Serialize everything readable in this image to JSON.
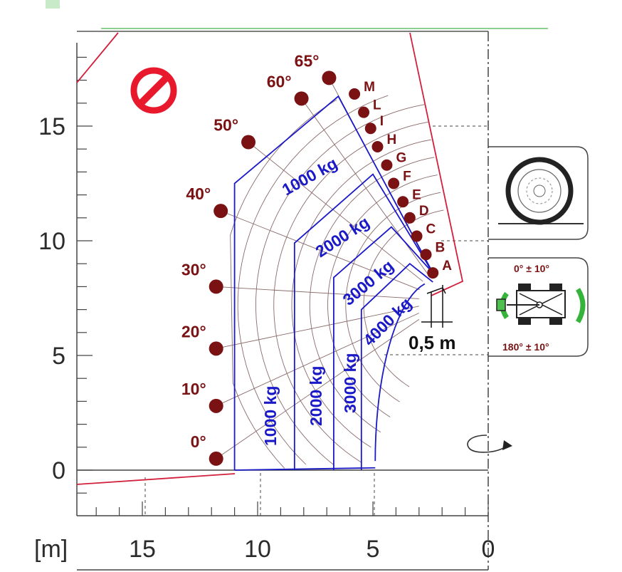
{
  "x_axis": {
    "unit_label": "[m]",
    "ticks": [
      {
        "value": 15,
        "label": "15"
      },
      {
        "value": 10,
        "label": "10"
      },
      {
        "value": 5,
        "label": "5"
      },
      {
        "value": 0,
        "label": "0"
      }
    ]
  },
  "y_axis": {
    "ticks": [
      {
        "value": 15,
        "label": "15"
      },
      {
        "value": 10,
        "label": "10"
      },
      {
        "value": 5,
        "label": "5"
      },
      {
        "value": 0,
        "label": "0"
      }
    ]
  },
  "boom_angles": [
    {
      "label": "0°",
      "x": 11.8,
      "y": 0.5
    },
    {
      "label": "10°",
      "x": 11.8,
      "y": 2.8
    },
    {
      "label": "20°",
      "x": 11.8,
      "y": 5.3
    },
    {
      "label": "30°",
      "x": 11.8,
      "y": 8.0
    },
    {
      "label": "40°",
      "x": 11.6,
      "y": 11.3
    },
    {
      "label": "50°",
      "x": 10.4,
      "y": 14.3
    },
    {
      "label": "60°",
      "x": 8.1,
      "y": 16.2
    },
    {
      "label": "65°",
      "x": 6.9,
      "y": 17.1
    }
  ],
  "extension_positions": [
    {
      "label": "A",
      "x": 2.4,
      "y": 8.6
    },
    {
      "label": "B",
      "x": 2.7,
      "y": 9.4
    },
    {
      "label": "C",
      "x": 3.1,
      "y": 10.2
    },
    {
      "label": "D",
      "x": 3.4,
      "y": 11.0
    },
    {
      "label": "E",
      "x": 3.7,
      "y": 11.7
    },
    {
      "label": "F",
      "x": 4.1,
      "y": 12.5
    },
    {
      "label": "G",
      "x": 4.4,
      "y": 13.3
    },
    {
      "label": "H",
      "x": 4.8,
      "y": 14.1
    },
    {
      "label": "I",
      "x": 5.1,
      "y": 14.9
    },
    {
      "label": "L",
      "x": 5.4,
      "y": 15.6
    },
    {
      "label": "M",
      "x": 5.8,
      "y": 16.4
    }
  ],
  "load_zones": [
    {
      "label": "1000 kg",
      "diagonal_label": "1000 kg",
      "reach_x": 11.0
    },
    {
      "label": "2000 kg",
      "diagonal_label": "2000 kg",
      "reach_x": 8.4
    },
    {
      "label": "3000 kg",
      "diagonal_label": "3000 kg",
      "reach_x": 6.7
    },
    {
      "label": "4000 kg",
      "diagonal_label": "4000 kg",
      "reach_x": 5.5
    }
  ],
  "dimension": {
    "label": "0,5 m"
  },
  "rotation_info": {
    "top_label": "0° ± 10°",
    "bottom_label": "180° ± 10°"
  },
  "icons": {
    "prohibited": "no-entry-icon",
    "stabilizer": "wheel-icon",
    "rotation": "rotation-arrow-icon"
  },
  "colors": {
    "angle_marker": "#7a1214",
    "load_zone": "#1a19c8",
    "limit_line": "#d21f3c",
    "grid_arc": "#8a6a6a",
    "prohibited": "#e8192c",
    "rotation_accent": "#36b33a"
  }
}
